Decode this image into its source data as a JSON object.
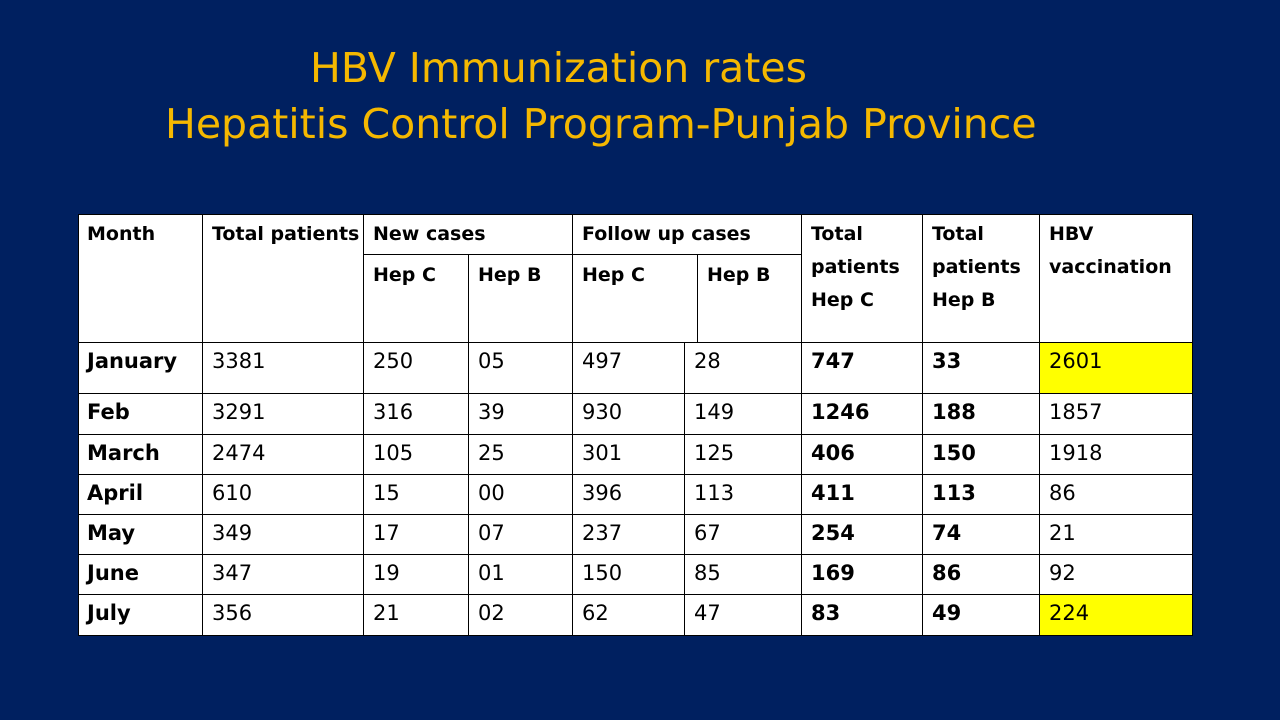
{
  "title": {
    "line1": "HBV Immunization rates",
    "line2": "Hepatitis Control Program-Punjab Province"
  },
  "table": {
    "headers": {
      "month": "Month",
      "total_patients": "Total patients",
      "new_cases": "New cases",
      "follow_up_cases": "Follow up cases",
      "hep_c": "Hep C",
      "hep_b": "Hep B",
      "total_patients_hep_c": [
        "Total",
        "patients",
        "Hep C"
      ],
      "total_patients_hep_b": [
        "Total",
        "patients",
        "Hep B"
      ],
      "hbv_vaccination": [
        "HBV",
        "vaccination"
      ]
    },
    "rows": [
      {
        "month": "January",
        "total": "3381",
        "new_c": "250",
        "new_b": "05",
        "fu_c": "497",
        "fu_b": "28",
        "tot_c": "747",
        "tot_b": "33",
        "hbv": "2601",
        "highlight": true
      },
      {
        "month": "Feb",
        "total": "3291",
        "new_c": "316",
        "new_b": "39",
        "fu_c": "930",
        "fu_b": "149",
        "tot_c": "1246",
        "tot_b": "188",
        "hbv": "1857",
        "highlight": false
      },
      {
        "month": "March",
        "total": "2474",
        "new_c": "105",
        "new_b": "25",
        "fu_c": "301",
        "fu_b": "125",
        "tot_c": "406",
        "tot_b": "150",
        "hbv": "1918",
        "highlight": false
      },
      {
        "month": "April",
        "total": "610",
        "new_c": "15",
        "new_b": "00",
        "fu_c": "396",
        "fu_b": "113",
        "tot_c": "411",
        "tot_b": "113",
        "hbv": "86",
        "highlight": false
      },
      {
        "month": "May",
        "total": "349",
        "new_c": "17",
        "new_b": "07",
        "fu_c": "237",
        "fu_b": "67",
        "tot_c": "254",
        "tot_b": "74",
        "hbv": "21",
        "highlight": false
      },
      {
        "month": "June",
        "total": "347",
        "new_c": "19",
        "new_b": "01",
        "fu_c": "150",
        "fu_b": "85",
        "tot_c": "169",
        "tot_b": "86",
        "hbv": "92",
        "highlight": false
      },
      {
        "month": "July",
        "total": "356",
        "new_c": "21",
        "new_b": "02",
        "fu_c": "62",
        "fu_b": "47",
        "tot_c": "83",
        "tot_b": "49",
        "hbv": "224",
        "highlight": true
      }
    ]
  },
  "colors": {
    "background": "#002060",
    "title": "#f5b800",
    "highlight": "#ffff00"
  }
}
